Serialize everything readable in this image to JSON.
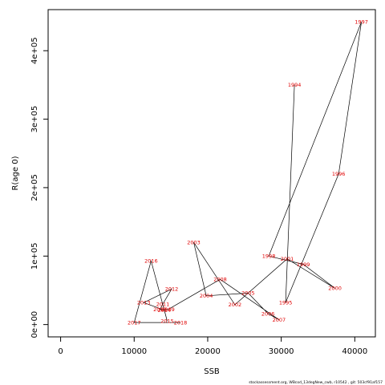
{
  "chart_data": {
    "type": "line",
    "xlabel": "SSB",
    "ylabel": "R(age 0)",
    "xlim": [
      -1700,
      42800
    ],
    "ylim": [
      -18000,
      460000
    ],
    "x_ticks": [
      0,
      10000,
      20000,
      30000,
      40000
    ],
    "y_ticks": [
      0,
      100000,
      200000,
      300000,
      400000
    ],
    "x_tick_labels": [
      "0",
      "10000",
      "20000",
      "30000",
      "40000"
    ],
    "y_tick_labels": [
      "0e+00",
      "1e+05",
      "2e+05",
      "3e+05",
      "4e+05"
    ],
    "grid": false,
    "points": [
      {
        "year": "1994",
        "ssb": 31800,
        "rec": 350000
      },
      {
        "year": "1995",
        "ssb": 30600,
        "rec": 32000
      },
      {
        "year": "1996",
        "ssb": 37800,
        "rec": 220000
      },
      {
        "year": "1997",
        "ssb": 40900,
        "rec": 442000
      },
      {
        "year": "1998",
        "ssb": 28300,
        "rec": 100000
      },
      {
        "year": "1999",
        "ssb": 33000,
        "rec": 88000
      },
      {
        "year": "2000",
        "ssb": 37300,
        "rec": 53000
      },
      {
        "year": "2001",
        "ssb": 30800,
        "rec": 96000
      },
      {
        "year": "2002",
        "ssb": 23700,
        "rec": 29000
      },
      {
        "year": "2003",
        "ssb": 18100,
        "rec": 120000
      },
      {
        "year": "2004",
        "ssb": 19800,
        "rec": 42000
      },
      {
        "year": "2005",
        "ssb": 25500,
        "rec": 46000
      },
      {
        "year": "2006",
        "ssb": 28200,
        "rec": 16000
      },
      {
        "year": "2007",
        "ssb": 29700,
        "rec": 7000
      },
      {
        "year": "2008",
        "ssb": 21700,
        "rec": 66000
      },
      {
        "year": "2009",
        "ssb": 14600,
        "rec": 22000
      },
      {
        "year": "2010",
        "ssb": 13500,
        "rec": 22000
      },
      {
        "year": "2011",
        "ssb": 13900,
        "rec": 30000
      },
      {
        "year": "2012",
        "ssb": 15100,
        "rec": 52000
      },
      {
        "year": "2013",
        "ssb": 11300,
        "rec": 32000
      },
      {
        "year": "2014",
        "ssb": 14100,
        "rec": 21000
      },
      {
        "year": "2015",
        "ssb": 14500,
        "rec": 5000
      },
      {
        "year": "2016",
        "ssb": 12300,
        "rec": 93000
      },
      {
        "year": "2017",
        "ssb": 10000,
        "rec": 3000
      },
      {
        "year": "2018",
        "ssb": 16300,
        "rec": 3000
      }
    ],
    "line_color": "#000000",
    "label_color": "#e00000"
  },
  "footer": "stockassessment.org,  WBcod_13degNew_cwb,  r10542 ,  git: 503cf91af157"
}
